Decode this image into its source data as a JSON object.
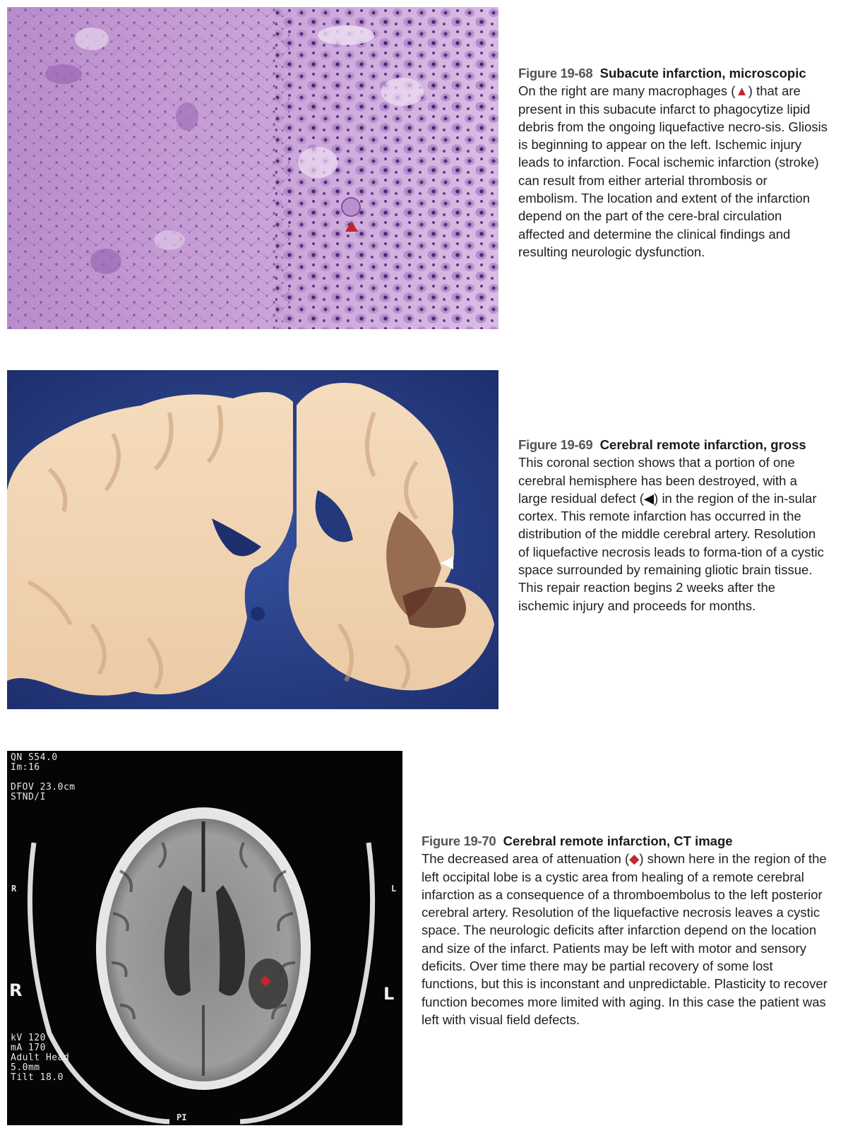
{
  "figures": [
    {
      "label": "Figure 19-68",
      "title": "Subacute infarction, microscopic",
      "body": "On the right are many macrophages (▲) that are present in this subacute infarct to phagocytize lipid debris from the ongoing liquefactive necro-sis. Gliosis is beginning to appear on the left. Ischemic injury leads to infarction. Focal ischemic infarction (stroke) can result from either arterial thrombosis or embolism. The location and extent of the infarction depend on the part of the cere-bral circulation affected and determine the clinical findings and resulting neurologic dysfunction.",
      "marker": "▲",
      "marker_color": "#c0262c"
    },
    {
      "label": "Figure 19-69",
      "title": "Cerebral remote infarction, gross",
      "body": "This coronal section shows that a portion of one cerebral hemisphere has been destroyed, with a large residual defect (◀) in the region of the in-sular cortex. This remote infarction has occurred in the distribution of the middle cerebral artery. Resolution of liquefactive necrosis leads to forma-tion of a cystic space surrounded by remaining gliotic brain tissue. This repair reaction begins 2 weeks after the ischemic injury and proceeds for months.",
      "marker": "◀",
      "marker_color": "#ffffff"
    },
    {
      "label": "Figure 19-70",
      "title": "Cerebral remote infarction, CT image",
      "body": "The decreased area of attenuation (◆) shown here in the region of the left occipital lobe is a cystic area from healing of a remote cerebral infarction as a consequence of a thromboembolus to the left posterior cerebral artery. Resolution of the liquefactive necrosis leaves a cystic space. The neurologic deficits after infarction depend on the location and size of the infarct. Patients may be left with motor and sensory deficits. Over time there may be partial recovery of some lost functions, but this is inconstant and unpredictable. Plasticity to recover function becomes more limited with aging. In this case the patient was left with visual field defects.",
      "marker": "◆",
      "marker_color": "#c0262c"
    }
  ],
  "ct_overlay": {
    "top_left": "QN S54.0\nIm:16\n\nDFOV 23.0cm\nSTND/I",
    "bottom_left": "kV 120\nmA 170\nAdult Head\n5.0mm\nTilt 18.0",
    "left_big": "R",
    "right_big": "L",
    "left_small": "R",
    "right_small": "L",
    "bottom_center": "PI"
  },
  "colors": {
    "histology_bg": "#c9a3d6",
    "gross_bg": "#2a3f8c",
    "tissue": "#f2d8b8",
    "ct_bg": "#050505"
  }
}
